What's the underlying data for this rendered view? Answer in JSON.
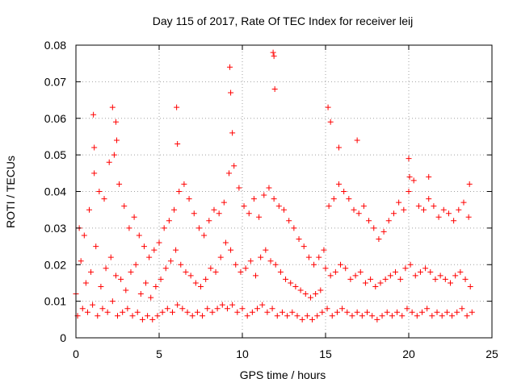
{
  "chart_data": {
    "type": "scatter",
    "title": "Day 115 of 2017, Rate Of TEC Index for receiver leij",
    "xlabel": "GPS time / hours",
    "ylabel": "ROTI / TECUs",
    "xlim": [
      0,
      25
    ],
    "ylim": [
      0,
      0.08
    ],
    "x_ticks": [
      "0",
      "5",
      "10",
      "15",
      "20",
      "25"
    ],
    "y_ticks": [
      "0",
      "0.01",
      "0.02",
      "0.03",
      "0.04",
      "0.05",
      "0.06",
      "0.07",
      "0.08"
    ],
    "grid": true,
    "marker": "+",
    "color": "#ff0000",
    "series": [
      {
        "x": [
          0.0,
          0.3,
          0.6,
          0.9,
          1.2,
          1.5,
          1.8,
          2.1,
          2.4,
          2.7,
          3.0,
          3.3,
          3.6,
          3.9,
          4.2,
          4.5,
          4.8,
          5.1,
          5.4,
          5.7,
          6.0,
          6.3,
          6.6,
          6.9,
          7.2,
          7.5,
          7.8,
          8.1,
          8.4,
          8.7,
          9.0,
          9.3,
          9.6,
          9.9,
          10.2,
          10.5,
          10.8,
          11.1,
          11.4,
          11.7,
          12.0,
          12.3,
          12.6,
          12.9,
          13.2,
          13.5,
          13.8,
          14.1,
          14.4,
          14.7,
          15.0,
          15.3,
          15.6,
          15.9,
          16.2,
          16.5,
          16.8,
          17.1,
          17.4,
          17.7,
          18.0,
          18.3,
          18.6,
          18.9,
          19.2,
          19.5,
          19.8,
          20.1,
          20.4,
          20.7,
          21.0,
          21.3,
          21.6,
          21.9,
          22.2,
          22.5,
          22.8,
          23.1,
          23.4,
          23.7,
          0.1,
          0.4,
          0.7,
          1.0,
          1.3,
          1.6,
          1.9,
          2.2,
          2.5,
          2.8,
          3.1,
          3.4,
          3.7,
          4.0,
          4.3,
          4.6,
          4.9,
          5.2,
          5.5,
          5.8,
          6.1,
          6.4,
          6.7,
          7.0,
          7.3,
          7.6,
          7.9,
          8.2,
          8.5,
          8.8,
          9.1,
          9.4,
          9.7,
          10.0,
          10.3,
          10.6,
          10.9,
          11.2,
          11.5,
          11.8,
          12.1,
          12.4,
          12.7,
          13.0,
          13.3,
          13.6,
          13.9,
          14.2,
          14.5,
          14.8,
          15.1,
          15.4,
          15.7,
          16.0,
          16.3,
          16.6,
          16.9,
          17.2,
          17.5,
          17.8,
          18.1,
          18.4,
          18.7,
          19.0,
          19.3,
          19.6,
          19.9,
          20.2,
          20.5,
          20.8,
          21.1,
          21.4,
          21.7,
          22.0,
          22.3,
          22.6,
          22.9,
          23.2,
          23.5,
          23.8,
          0.2,
          0.5,
          0.8,
          1.1,
          1.4,
          1.7,
          2.0,
          2.3,
          2.6,
          2.9,
          3.2,
          3.5,
          3.8,
          4.1,
          4.4,
          4.7,
          5.0,
          5.3,
          5.6,
          5.9,
          6.2,
          6.5,
          6.8,
          7.1,
          7.4,
          7.7,
          8.0,
          8.3,
          8.6,
          8.9,
          9.2,
          9.5,
          9.8,
          10.1,
          10.4,
          10.7,
          11.0,
          11.3,
          11.6,
          11.9,
          12.2,
          12.5,
          12.8,
          13.1,
          13.4,
          13.7,
          14.0,
          14.3,
          14.6,
          14.9,
          15.2,
          15.5,
          15.8,
          16.1,
          16.4,
          16.7,
          17.0,
          17.3,
          17.6,
          17.9,
          18.2,
          18.5,
          18.8,
          19.1,
          19.4,
          19.7,
          20.0,
          20.3,
          20.6,
          20.9,
          21.2,
          21.5,
          21.8,
          22.1,
          22.4,
          22.7,
          23.0,
          23.3,
          23.6,
          1.05,
          1.1,
          2.2,
          2.4,
          2.45,
          6.05,
          6.1,
          9.25,
          9.3,
          9.4,
          11.85,
          11.9,
          11.95,
          15.15,
          15.3,
          15.8,
          16.9,
          20.0,
          20.05,
          21.2,
          23.65
        ],
        "y": [
          0.012,
          0.021,
          0.015,
          0.018,
          0.025,
          0.014,
          0.019,
          0.022,
          0.017,
          0.016,
          0.013,
          0.018,
          0.02,
          0.012,
          0.015,
          0.011,
          0.014,
          0.016,
          0.019,
          0.021,
          0.024,
          0.02,
          0.018,
          0.017,
          0.015,
          0.014,
          0.016,
          0.019,
          0.018,
          0.022,
          0.026,
          0.024,
          0.02,
          0.018,
          0.019,
          0.021,
          0.017,
          0.022,
          0.024,
          0.021,
          0.02,
          0.018,
          0.016,
          0.015,
          0.014,
          0.013,
          0.012,
          0.011,
          0.012,
          0.013,
          0.019,
          0.017,
          0.018,
          0.02,
          0.019,
          0.016,
          0.017,
          0.018,
          0.015,
          0.016,
          0.014,
          0.015,
          0.016,
          0.017,
          0.018,
          0.016,
          0.019,
          0.02,
          0.017,
          0.018,
          0.019,
          0.018,
          0.016,
          0.017,
          0.016,
          0.015,
          0.017,
          0.018,
          0.016,
          0.014,
          0.006,
          0.008,
          0.007,
          0.009,
          0.006,
          0.008,
          0.007,
          0.01,
          0.006,
          0.007,
          0.008,
          0.006,
          0.007,
          0.005,
          0.006,
          0.005,
          0.006,
          0.007,
          0.008,
          0.007,
          0.009,
          0.008,
          0.007,
          0.006,
          0.007,
          0.006,
          0.008,
          0.007,
          0.008,
          0.009,
          0.008,
          0.009,
          0.007,
          0.008,
          0.006,
          0.007,
          0.008,
          0.009,
          0.007,
          0.008,
          0.006,
          0.007,
          0.006,
          0.007,
          0.006,
          0.005,
          0.006,
          0.005,
          0.006,
          0.007,
          0.008,
          0.006,
          0.007,
          0.008,
          0.007,
          0.006,
          0.007,
          0.006,
          0.007,
          0.006,
          0.005,
          0.006,
          0.007,
          0.006,
          0.007,
          0.006,
          0.008,
          0.007,
          0.006,
          0.007,
          0.008,
          0.006,
          0.007,
          0.006,
          0.007,
          0.006,
          0.007,
          0.008,
          0.006,
          0.007,
          0.03,
          0.028,
          0.035,
          0.045,
          0.04,
          0.038,
          0.048,
          0.05,
          0.042,
          0.036,
          0.03,
          0.033,
          0.028,
          0.025,
          0.022,
          0.024,
          0.026,
          0.03,
          0.032,
          0.035,
          0.04,
          0.042,
          0.038,
          0.034,
          0.03,
          0.028,
          0.032,
          0.035,
          0.034,
          0.037,
          0.045,
          0.047,
          0.041,
          0.036,
          0.034,
          0.038,
          0.033,
          0.039,
          0.041,
          0.038,
          0.036,
          0.035,
          0.032,
          0.03,
          0.027,
          0.025,
          0.022,
          0.02,
          0.022,
          0.024,
          0.036,
          0.038,
          0.042,
          0.04,
          0.038,
          0.035,
          0.034,
          0.036,
          0.032,
          0.03,
          0.027,
          0.029,
          0.032,
          0.034,
          0.037,
          0.035,
          0.04,
          0.043,
          0.036,
          0.035,
          0.038,
          0.036,
          0.033,
          0.035,
          0.034,
          0.032,
          0.035,
          0.037,
          0.033,
          0.061,
          0.052,
          0.063,
          0.059,
          0.054,
          0.063,
          0.053,
          0.074,
          0.067,
          0.056,
          0.078,
          0.077,
          0.068,
          0.063,
          0.059,
          0.052,
          0.054,
          0.049,
          0.044,
          0.044,
          0.042
        ]
      }
    ]
  }
}
